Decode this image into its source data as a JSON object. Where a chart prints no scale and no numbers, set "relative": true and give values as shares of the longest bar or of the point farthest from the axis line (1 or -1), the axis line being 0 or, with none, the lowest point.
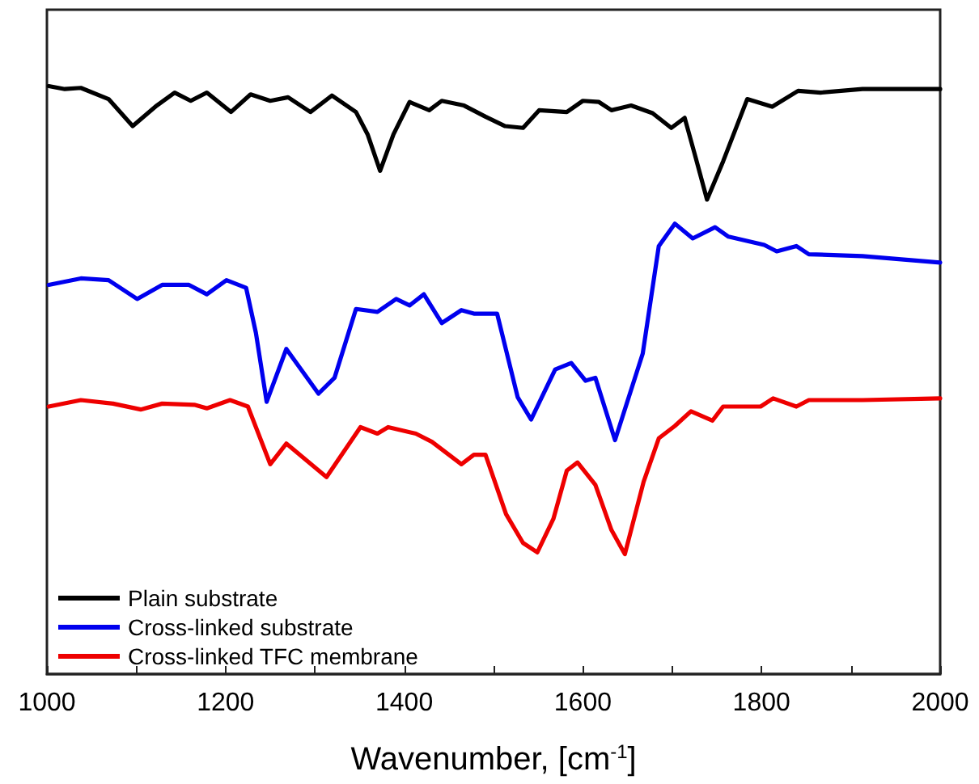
{
  "chart_data": {
    "type": "line",
    "relative": true,
    "xlabel": "Wavenumber, [cm$^{-1}$]",
    "xlim": [
      1000,
      2000
    ],
    "xticks": [
      1000,
      {
        "value": 1100,
        "label": null
      },
      1200,
      {
        "value": 1300,
        "label": null
      },
      1400,
      {
        "value": 1500,
        "label": null
      },
      1600,
      {
        "value": 1700,
        "label": null
      },
      1800,
      {
        "value": 1900,
        "label": null
      },
      2000
    ],
    "legend": "bottom left",
    "grid": false,
    "marker": "none",
    "line_style": "solid",
    "series": [
      {
        "name": "Plain substrate",
        "color": "#000000",
        "x": [
          1002,
          1020,
          1038,
          1069,
          1096,
          1123,
          1143,
          1161,
          1179,
          1206,
          1228,
          1250,
          1270,
          1295,
          1319,
          1346,
          1359,
          1373,
          1388,
          1406,
          1428,
          1442,
          1467,
          1491,
          1513,
          1533,
          1551,
          1582,
          1600,
          1618,
          1632,
          1654,
          1678,
          1699,
          1714,
          1726,
          1739,
          1757,
          1784,
          1812,
          1841,
          1866,
          1913,
          2000
        ],
        "values": [
          1.0,
          0.995,
          0.997,
          0.978,
          0.932,
          0.967,
          0.989,
          0.975,
          0.989,
          0.956,
          0.986,
          0.975,
          0.981,
          0.956,
          0.984,
          0.956,
          0.918,
          0.856,
          0.918,
          0.973,
          0.959,
          0.975,
          0.967,
          0.948,
          0.932,
          0.929,
          0.959,
          0.956,
          0.975,
          0.973,
          0.959,
          0.967,
          0.954,
          0.929,
          0.946,
          0.88,
          0.807,
          0.872,
          0.978,
          0.965,
          0.992,
          0.989,
          0.995,
          0.995
        ]
      },
      {
        "name": "Cross-linked substrate",
        "color": "#0000ee",
        "x": [
          1002,
          1038,
          1069,
          1101,
          1129,
          1159,
          1179,
          1201,
          1223,
          1234,
          1246,
          1268,
          1304,
          1322,
          1346,
          1370,
          1391,
          1406,
          1422,
          1442,
          1464,
          1478,
          1504,
          1527,
          1542,
          1569,
          1587,
          1603,
          1614,
          1636,
          1667,
          1685,
          1703,
          1723,
          1748,
          1763,
          1803,
          1817,
          1839,
          1853,
          1913,
          2000
        ],
        "values": [
          0.662,
          0.673,
          0.67,
          0.638,
          0.662,
          0.662,
          0.646,
          0.67,
          0.657,
          0.58,
          0.463,
          0.553,
          0.477,
          0.504,
          0.621,
          0.616,
          0.638,
          0.627,
          0.646,
          0.597,
          0.619,
          0.613,
          0.613,
          0.471,
          0.433,
          0.518,
          0.529,
          0.499,
          0.504,
          0.398,
          0.545,
          0.728,
          0.766,
          0.741,
          0.76,
          0.744,
          0.73,
          0.719,
          0.728,
          0.714,
          0.711,
          0.7
        ]
      },
      {
        "name": "Cross-linked TFC membrane",
        "color": "#ee0000",
        "x": [
          1002,
          1038,
          1074,
          1105,
          1129,
          1165,
          1179,
          1205,
          1225,
          1250,
          1268,
          1313,
          1351,
          1370,
          1382,
          1413,
          1431,
          1464,
          1478,
          1491,
          1514,
          1533,
          1549,
          1567,
          1582,
          1594,
          1614,
          1632,
          1647,
          1668,
          1685,
          1703,
          1721,
          1745,
          1757,
          1799,
          1813,
          1839,
          1853,
          1913,
          2000
        ],
        "values": [
          0.455,
          0.466,
          0.46,
          0.45,
          0.46,
          0.458,
          0.452,
          0.466,
          0.455,
          0.357,
          0.392,
          0.335,
          0.42,
          0.409,
          0.42,
          0.409,
          0.395,
          0.357,
          0.373,
          0.373,
          0.272,
          0.223,
          0.207,
          0.264,
          0.346,
          0.36,
          0.322,
          0.245,
          0.204,
          0.327,
          0.401,
          0.422,
          0.447,
          0.431,
          0.455,
          0.455,
          0.469,
          0.455,
          0.466,
          0.466,
          0.469
        ]
      }
    ]
  }
}
